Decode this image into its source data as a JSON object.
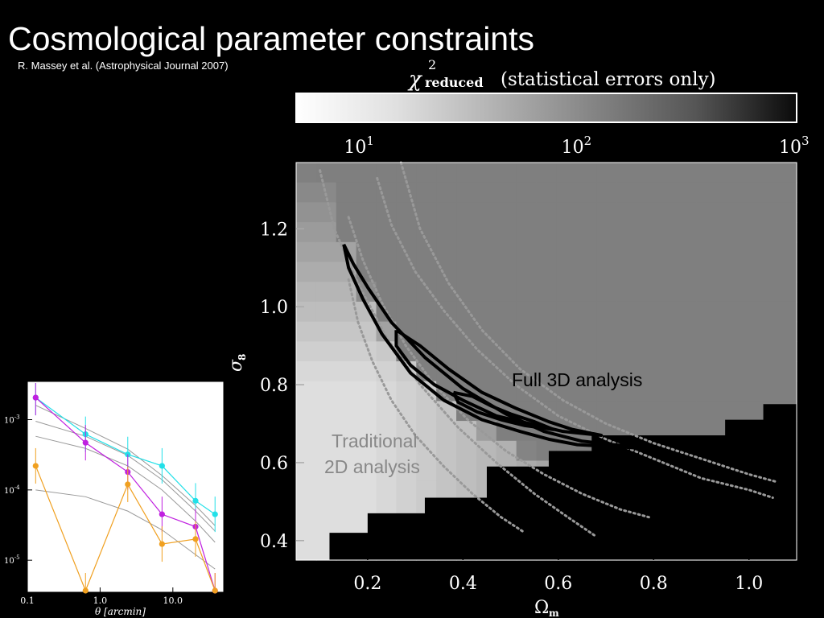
{
  "slide": {
    "title": "Cosmological parameter constraints",
    "citation": "R. Massey et al. (Astrophysical Journal 2007)"
  },
  "chart_data": [
    {
      "type": "heatmap",
      "colorbar": {
        "title_symbol": "χ",
        "title_sup": "2",
        "title_sub": "reduced",
        "title_text": "(statistical errors only)",
        "scale": "log",
        "range": [
          5,
          1000
        ],
        "tick_labels": [
          {
            "base": "10",
            "exp": "1"
          },
          {
            "base": "10",
            "exp": "2"
          },
          {
            "base": "10",
            "exp": "3"
          }
        ],
        "tick_values": [
          10,
          100,
          1000
        ]
      },
      "xlabel": "Ω",
      "xlabel_sub": "m",
      "ylabel": "σ",
      "ylabel_sub": "8",
      "xlim": [
        0.05,
        1.1
      ],
      "ylim": [
        0.35,
        1.37
      ],
      "xticks": [
        "0.2",
        "0.4",
        "0.6",
        "0.8",
        "1.0"
      ],
      "yticks": [
        "0.4",
        "0.6",
        "0.8",
        "1.0",
        "1.2"
      ],
      "annotations": [
        {
          "text": "Full 3D analysis",
          "color": "#000000"
        },
        {
          "text": "Traditional",
          "color": "#888888"
        },
        {
          "text": "2D analysis",
          "color": "#888888"
        }
      ],
      "contours": {
        "full_3d_solid": [
          [
            [
              0.15,
              1.16
            ],
            [
              0.16,
              1.1
            ],
            [
              0.19,
              1.02
            ],
            [
              0.23,
              0.93
            ],
            [
              0.29,
              0.83
            ],
            [
              0.36,
              0.76
            ],
            [
              0.44,
              0.71
            ],
            [
              0.52,
              0.68
            ],
            [
              0.58,
              0.66
            ],
            [
              0.64,
              0.646
            ],
            [
              0.73,
              0.64
            ],
            [
              0.79,
              0.636
            ],
            [
              0.65,
              0.655
            ],
            [
              0.57,
              0.68
            ],
            [
              0.49,
              0.725
            ],
            [
              0.4,
              0.79
            ],
            [
              0.32,
              0.87
            ],
            [
              0.25,
              0.96
            ],
            [
              0.2,
              1.05
            ],
            [
              0.17,
              1.11
            ],
            [
              0.15,
              1.16
            ]
          ],
          [
            [
              0.26,
              0.94
            ],
            [
              0.31,
              0.9
            ],
            [
              0.37,
              0.84
            ],
            [
              0.44,
              0.78
            ],
            [
              0.51,
              0.74
            ],
            [
              0.58,
              0.705
            ],
            [
              0.63,
              0.685
            ],
            [
              0.69,
              0.67
            ],
            [
              0.61,
              0.68
            ],
            [
              0.54,
              0.7
            ],
            [
              0.47,
              0.72
            ],
            [
              0.4,
              0.76
            ],
            [
              0.34,
              0.8
            ],
            [
              0.29,
              0.85
            ],
            [
              0.26,
              0.9
            ],
            [
              0.26,
              0.94
            ]
          ],
          [
            [
              0.38,
              0.78
            ],
            [
              0.42,
              0.77
            ],
            [
              0.46,
              0.745
            ],
            [
              0.5,
              0.725
            ],
            [
              0.55,
              0.705
            ],
            [
              0.59,
              0.685
            ],
            [
              0.53,
              0.695
            ],
            [
              0.48,
              0.71
            ],
            [
              0.43,
              0.73
            ],
            [
              0.39,
              0.755
            ],
            [
              0.38,
              0.78
            ]
          ]
        ],
        "traditional_2d_dotted": [
          [
            [
              0.16,
              1.07
            ],
            [
              0.18,
              0.96
            ],
            [
              0.21,
              0.86
            ],
            [
              0.25,
              0.76
            ],
            [
              0.3,
              0.67
            ],
            [
              0.36,
              0.59
            ],
            [
              0.42,
              0.52
            ],
            [
              0.48,
              0.46
            ],
            [
              0.53,
              0.42
            ]
          ],
          [
            [
              0.16,
              1.23
            ],
            [
              0.19,
              1.12
            ],
            [
              0.23,
              1.01
            ],
            [
              0.28,
              0.9
            ],
            [
              0.34,
              0.8
            ],
            [
              0.41,
              0.71
            ],
            [
              0.49,
              0.63
            ],
            [
              0.57,
              0.57
            ],
            [
              0.65,
              0.52
            ],
            [
              0.73,
              0.48
            ],
            [
              0.79,
              0.46
            ]
          ],
          [
            [
              0.1,
              1.35
            ],
            [
              0.13,
              1.2
            ],
            [
              0.18,
              1.06
            ],
            [
              0.24,
              0.92
            ],
            [
              0.31,
              0.8
            ],
            [
              0.39,
              0.69
            ],
            [
              0.47,
              0.6
            ],
            [
              0.55,
              0.52
            ],
            [
              0.62,
              0.46
            ],
            [
              0.68,
              0.41
            ]
          ],
          [
            [
              0.27,
              1.37
            ],
            [
              0.31,
              1.2
            ],
            [
              0.37,
              1.06
            ],
            [
              0.44,
              0.94
            ],
            [
              0.52,
              0.84
            ],
            [
              0.61,
              0.76
            ],
            [
              0.7,
              0.7
            ],
            [
              0.8,
              0.65
            ],
            [
              0.9,
              0.61
            ],
            [
              1.0,
              0.57
            ],
            [
              1.06,
              0.55
            ]
          ],
          [
            [
              0.22,
              1.33
            ],
            [
              0.25,
              1.21
            ],
            [
              0.3,
              1.09
            ],
            [
              0.36,
              0.99
            ],
            [
              0.43,
              0.89
            ],
            [
              0.51,
              0.8
            ],
            [
              0.6,
              0.72
            ],
            [
              0.7,
              0.66
            ],
            [
              0.8,
              0.61
            ],
            [
              0.9,
              0.56
            ],
            [
              1.0,
              0.53
            ],
            [
              1.05,
              0.51
            ]
          ]
        ]
      }
    },
    {
      "type": "line",
      "xscale": "log",
      "yscale": "log",
      "xlabel": "θ [arcmin]",
      "xticks": [
        "0.1",
        "1.0",
        "10.0"
      ],
      "yticks": [
        {
          "base": "10",
          "exp": "-3"
        },
        {
          "base": "10",
          "exp": "-4"
        },
        {
          "base": "10",
          "exp": "-5"
        }
      ],
      "xlim": [
        0.1,
        50
      ],
      "ylim": [
        3.5e-06,
        0.0035
      ],
      "x": [
        0.13,
        0.63,
        2.4,
        7.1,
        20.5,
        38
      ],
      "series": [
        {
          "color": "#22e0e8",
          "values": [
            0.00206,
            0.00062,
            0.00032,
            0.00022,
            7e-05,
            4.5e-05
          ]
        },
        {
          "color": "#c020e0",
          "values": [
            0.00206,
            0.00047,
            0.00018,
            4.5e-05,
            3e-05,
            2.5e-06
          ]
        },
        {
          "color": "#f0a020",
          "values": [
            0.00022,
            2e-06,
            0.00012,
            1.7e-05,
            2e-05,
            2.5e-06
          ]
        }
      ],
      "model_curves": [
        [
          0.0016,
          0.00075,
          0.00038,
          0.00016,
          6e-05,
          3.1e-05
        ],
        [
          0.00095,
          0.00058,
          0.00031,
          0.00014,
          5e-05,
          2.6e-05
        ],
        [
          0.00058,
          0.00039,
          0.00022,
          0.0001,
          3.6e-05,
          1.8e-05
        ],
        [
          0.0001,
          8e-05,
          5e-05,
          2.7e-05,
          1.2e-05,
          7.5e-06
        ]
      ]
    }
  ]
}
